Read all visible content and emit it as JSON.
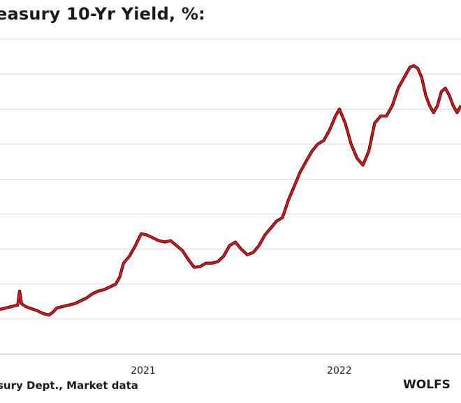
{
  "chart_data": {
    "type": "line",
    "title": "easury 10-Yr Yield, %:",
    "source": "sury Dept., Market data",
    "brand": "WOLFS",
    "x_ticks": [
      {
        "label": "2021",
        "value": 2021.0
      },
      {
        "label": "2022",
        "value": 2022.0
      }
    ],
    "xlim": [
      2020.27,
      2022.62
    ],
    "grid": true,
    "series": [
      {
        "color": "#e8141c",
        "x": [
          2020.27,
          2020.3,
          2020.33,
          2020.36,
          2020.37,
          2020.38,
          2020.4,
          2020.43,
          2020.46,
          2020.49,
          2020.52,
          2020.54,
          2020.56,
          2020.59,
          2020.62,
          2020.65,
          2020.68,
          2020.71,
          2020.74,
          2020.77,
          2020.8,
          2020.83,
          2020.86,
          2020.88,
          2020.9,
          2020.93,
          2020.96,
          2020.99,
          2021.02,
          2021.05,
          2021.08,
          2021.11,
          2021.14,
          2021.17,
          2021.2,
          2021.23,
          2021.26,
          2021.29,
          2021.32,
          2021.35,
          2021.38,
          2021.41,
          2021.44,
          2021.47,
          2021.5,
          2021.53,
          2021.56,
          2021.59,
          2021.62,
          2021.65,
          2021.68,
          2021.71,
          2021.74,
          2021.77,
          2021.8,
          2021.83,
          2021.86,
          2021.89,
          2021.92,
          2021.95,
          2021.98,
          2022.0,
          2022.03,
          2022.06,
          2022.09,
          2022.12,
          2022.15,
          2022.18,
          2022.21,
          2022.24,
          2022.27,
          2022.3,
          2022.32,
          2022.34,
          2022.36,
          2022.38,
          2022.4,
          2022.42,
          2022.44,
          2022.46,
          2022.48,
          2022.5,
          2022.52,
          2022.54,
          2022.56,
          2022.58,
          2022.6,
          2022.62
        ],
        "y": [
          0.64,
          0.66,
          0.68,
          0.7,
          0.9,
          0.72,
          0.68,
          0.65,
          0.62,
          0.58,
          0.56,
          0.6,
          0.66,
          0.68,
          0.7,
          0.72,
          0.76,
          0.8,
          0.86,
          0.9,
          0.92,
          0.96,
          1.0,
          1.1,
          1.3,
          1.4,
          1.55,
          1.72,
          1.7,
          1.66,
          1.62,
          1.6,
          1.62,
          1.55,
          1.48,
          1.35,
          1.24,
          1.25,
          1.3,
          1.3,
          1.32,
          1.4,
          1.55,
          1.6,
          1.5,
          1.42,
          1.45,
          1.55,
          1.7,
          1.8,
          1.9,
          1.95,
          2.2,
          2.4,
          2.6,
          2.75,
          2.9,
          3.0,
          3.05,
          3.2,
          3.4,
          3.5,
          3.3,
          3.0,
          2.8,
          2.7,
          2.9,
          3.3,
          3.4,
          3.4,
          3.55,
          3.8,
          3.9,
          4.0,
          4.1,
          4.12,
          4.08,
          3.95,
          3.7,
          3.55,
          3.45,
          3.55,
          3.75,
          3.8,
          3.7,
          3.55,
          3.45,
          3.55
        ]
      }
    ]
  }
}
